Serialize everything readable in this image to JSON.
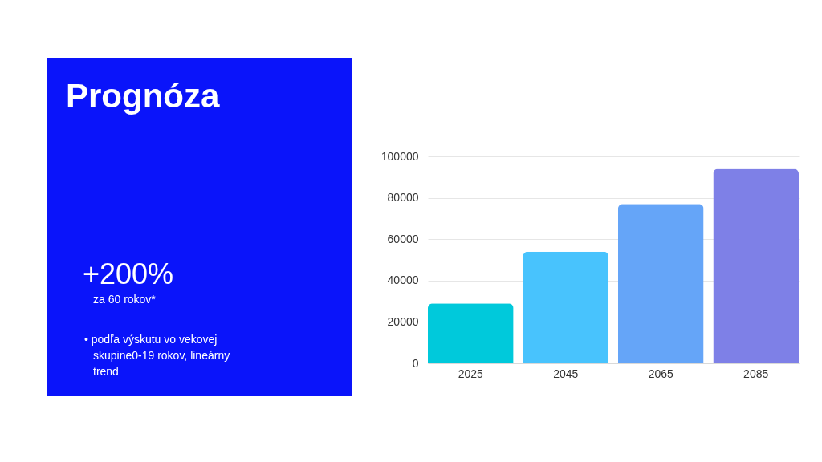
{
  "chart_data": {
    "type": "bar",
    "title": "Prognóza",
    "annotations": [
      "+200%",
      "za 60 rokov*",
      "• podľa výskutu vo vekovej skupine0-19 rokov, lineárny trend"
    ],
    "categories": [
      "2025",
      "2045",
      "2065",
      "2085"
    ],
    "values": [
      29000,
      54000,
      77000,
      94000
    ],
    "colors": [
      "#00c9db",
      "#48c3fd",
      "#65a5f8",
      "#7e80e7"
    ],
    "ylim": [
      0,
      100000
    ],
    "yticks": [
      0,
      20000,
      40000,
      60000,
      80000,
      100000
    ],
    "grid": "y"
  }
}
